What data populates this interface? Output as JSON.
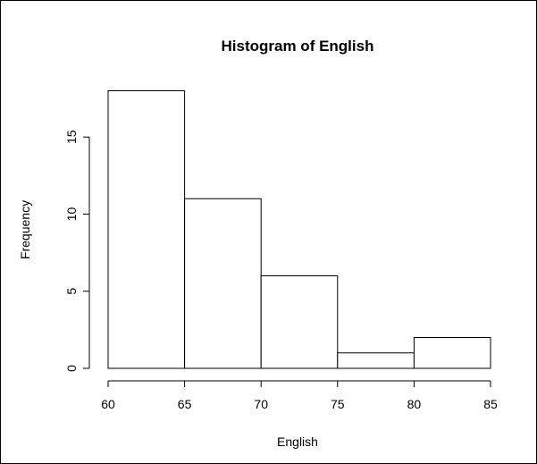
{
  "chart_data": {
    "type": "bar",
    "title": "Histogram of English",
    "xlabel": "English",
    "ylabel": "Frequency",
    "bins": [
      {
        "from": 60,
        "to": 65,
        "count": 18
      },
      {
        "from": 65,
        "to": 70,
        "count": 11
      },
      {
        "from": 70,
        "to": 75,
        "count": 6
      },
      {
        "from": 75,
        "to": 80,
        "count": 1
      },
      {
        "from": 80,
        "to": 85,
        "count": 2
      }
    ],
    "xlim": [
      60,
      85
    ],
    "ylim": [
      0,
      18
    ],
    "x_ticks": [
      60,
      65,
      70,
      75,
      80,
      85
    ],
    "y_ticks": [
      0,
      5,
      10,
      15
    ],
    "x_tick_labels": [
      "60",
      "65",
      "70",
      "75",
      "80",
      "85"
    ],
    "y_tick_labels": [
      "0",
      "5",
      "10",
      "15"
    ],
    "grid": false,
    "legend": "none",
    "colors": {
      "bar_fill": "#ffffff",
      "bar_stroke": "#000000",
      "background": "#ffffff"
    }
  }
}
